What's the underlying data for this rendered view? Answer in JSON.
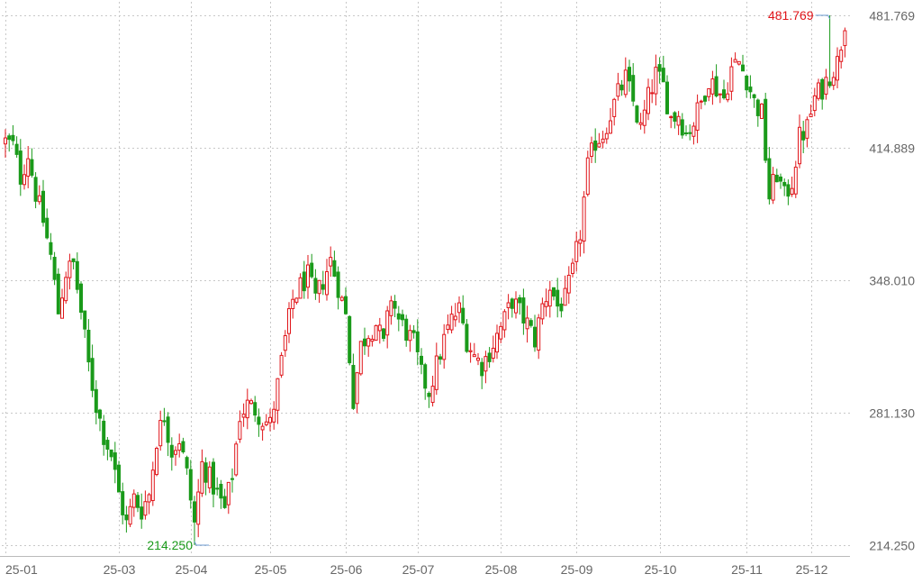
{
  "colors": {
    "up": "#e0151a",
    "down": "#1a9a1a",
    "grid": "#c8c8c8",
    "axis_text": "#666666",
    "pointer": "#6a9ad0"
  },
  "chart_data": {
    "type": "candlestick",
    "y_ticks": [
      "481.769",
      "414.889",
      "348.010",
      "281.130",
      "214.250"
    ],
    "y_tick_values": [
      481.769,
      414.889,
      348.01,
      281.13,
      214.25
    ],
    "ylim": [
      214.25,
      481.769
    ],
    "x_ticks": [
      "25-01",
      "25-03",
      "25-04",
      "25-05",
      "25-06",
      "25-07",
      "25-08",
      "25-09",
      "25-10",
      "25-11",
      "25-12"
    ],
    "x_tick_index": [
      0,
      30,
      49,
      70,
      90,
      109,
      131,
      151,
      173,
      196,
      213
    ],
    "grid": true,
    "high_annotation": {
      "label": "481.769",
      "value": 481.769,
      "index": 218
    },
    "low_annotation": {
      "label": "214.250",
      "value": 214.25,
      "index": 50
    },
    "waypoints": [
      [
        0,
        418
      ],
      [
        2,
        416
      ],
      [
        4,
        400
      ],
      [
        6,
        412
      ],
      [
        8,
        392
      ],
      [
        10,
        378
      ],
      [
        12,
        360
      ],
      [
        14,
        332
      ],
      [
        16,
        352
      ],
      [
        18,
        356
      ],
      [
        20,
        332
      ],
      [
        22,
        305
      ],
      [
        24,
        285
      ],
      [
        26,
        270
      ],
      [
        28,
        260
      ],
      [
        30,
        240
      ],
      [
        32,
        225
      ],
      [
        34,
        238
      ],
      [
        36,
        232
      ],
      [
        38,
        240
      ],
      [
        40,
        268
      ],
      [
        42,
        280
      ],
      [
        44,
        262
      ],
      [
        46,
        268
      ],
      [
        48,
        250
      ],
      [
        50,
        225
      ],
      [
        52,
        255
      ],
      [
        54,
        248
      ],
      [
        56,
        240
      ],
      [
        58,
        232
      ],
      [
        60,
        250
      ],
      [
        62,
        280
      ],
      [
        64,
        285
      ],
      [
        66,
        283
      ],
      [
        68,
        278
      ],
      [
        70,
        275
      ],
      [
        72,
        295
      ],
      [
        74,
        318
      ],
      [
        76,
        338
      ],
      [
        78,
        345
      ],
      [
        80,
        350
      ],
      [
        82,
        338
      ],
      [
        84,
        348
      ],
      [
        86,
        358
      ],
      [
        88,
        345
      ],
      [
        90,
        330
      ],
      [
        92,
        288
      ],
      [
        94,
        315
      ],
      [
        96,
        322
      ],
      [
        98,
        326
      ],
      [
        100,
        315
      ],
      [
        102,
        340
      ],
      [
        104,
        328
      ],
      [
        106,
        322
      ],
      [
        108,
        316
      ],
      [
        110,
        300
      ],
      [
        112,
        292
      ],
      [
        114,
        305
      ],
      [
        116,
        318
      ],
      [
        118,
        328
      ],
      [
        120,
        333
      ],
      [
        122,
        318
      ],
      [
        124,
        310
      ],
      [
        126,
        305
      ],
      [
        128,
        312
      ],
      [
        130,
        320
      ],
      [
        132,
        328
      ],
      [
        134,
        338
      ],
      [
        136,
        332
      ],
      [
        138,
        326
      ],
      [
        140,
        318
      ],
      [
        142,
        335
      ],
      [
        144,
        345
      ],
      [
        146,
        335
      ],
      [
        148,
        338
      ],
      [
        150,
        352
      ],
      [
        152,
        372
      ],
      [
        154,
        405
      ],
      [
        156,
        418
      ],
      [
        158,
        422
      ],
      [
        160,
        432
      ],
      [
        162,
        442
      ],
      [
        164,
        450
      ],
      [
        166,
        438
      ],
      [
        168,
        424
      ],
      [
        170,
        440
      ],
      [
        172,
        452
      ],
      [
        174,
        446
      ],
      [
        176,
        430
      ],
      [
        178,
        432
      ],
      [
        180,
        422
      ],
      [
        182,
        428
      ],
      [
        184,
        438
      ],
      [
        186,
        450
      ],
      [
        188,
        445
      ],
      [
        190,
        440
      ],
      [
        192,
        455
      ],
      [
        194,
        458
      ],
      [
        196,
        450
      ],
      [
        198,
        438
      ],
      [
        200,
        432
      ],
      [
        202,
        390
      ],
      [
        204,
        402
      ],
      [
        206,
        390
      ],
      [
        208,
        398
      ],
      [
        210,
        420
      ],
      [
        212,
        425
      ],
      [
        214,
        440
      ],
      [
        216,
        445
      ],
      [
        218,
        452
      ],
      [
        220,
        458
      ],
      [
        222,
        478
      ]
    ]
  }
}
